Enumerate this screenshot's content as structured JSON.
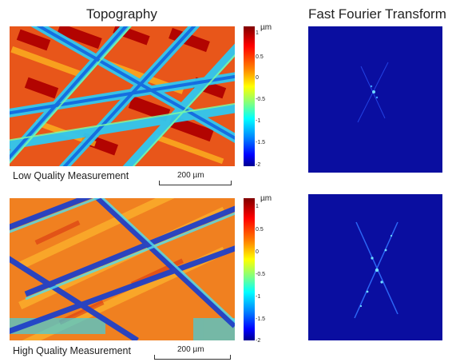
{
  "titles": {
    "topography": "Topography",
    "fft": "Fast Fourier Transform"
  },
  "rows": [
    {
      "caption": "Low Quality Measurement",
      "scale_label": "200 µm",
      "unit": "µm",
      "ticks": [
        "1",
        "0.5",
        "0",
        "-0.5",
        "-1",
        "-1.5",
        "-2"
      ]
    },
    {
      "caption": "High Quality Measurement",
      "scale_label": "200 µm",
      "unit": "µm",
      "ticks": [
        "1",
        "0.5",
        "0",
        "-0.5",
        "-1",
        "-1.5",
        "-2"
      ]
    }
  ],
  "colormap": [
    "#00008f",
    "#0000ff",
    "#0080ff",
    "#00ffff",
    "#80ff80",
    "#ffff00",
    "#ff8000",
    "#ff0000",
    "#800000"
  ],
  "fft_background": "#0a0ea0"
}
